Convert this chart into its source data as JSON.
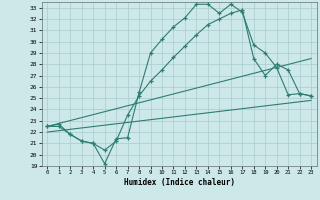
{
  "xlabel": "Humidex (Indice chaleur)",
  "bg_color": "#cce8e8",
  "grid_color": "#aacccc",
  "line_color": "#2e7d6e",
  "xlim": [
    -0.5,
    23.5
  ],
  "ylim": [
    19,
    33.5
  ],
  "xticks": [
    0,
    1,
    2,
    3,
    4,
    5,
    6,
    7,
    8,
    9,
    10,
    11,
    12,
    13,
    14,
    15,
    16,
    17,
    18,
    19,
    20,
    21,
    22,
    23
  ],
  "yticks": [
    19,
    20,
    21,
    22,
    23,
    24,
    25,
    26,
    27,
    28,
    29,
    30,
    31,
    32,
    33
  ],
  "line1_x": [
    0,
    1,
    2,
    3,
    4,
    5,
    6,
    7,
    8,
    9,
    10,
    11,
    12,
    13,
    14,
    15,
    16,
    17,
    18,
    19,
    20,
    21,
    22,
    23
  ],
  "line1_y": [
    22.5,
    22.5,
    21.8,
    21.2,
    21.0,
    19.2,
    21.4,
    21.5,
    25.5,
    29.0,
    30.2,
    31.3,
    32.1,
    33.3,
    33.3,
    32.5,
    33.3,
    32.6,
    29.7,
    29.0,
    27.7,
    25.3,
    25.4,
    25.2
  ],
  "line2_x": [
    0,
    1,
    2,
    3,
    4,
    5,
    6,
    7,
    8,
    9,
    10,
    11,
    12,
    13,
    14,
    15,
    16,
    17,
    18,
    19,
    20,
    21,
    22,
    23
  ],
  "line2_y": [
    22.5,
    22.7,
    21.8,
    21.2,
    21.0,
    20.4,
    21.2,
    23.5,
    25.2,
    26.5,
    27.5,
    28.6,
    29.6,
    30.6,
    31.5,
    32.0,
    32.5,
    32.8,
    28.5,
    27.0,
    28.0,
    27.5,
    25.4,
    25.2
  ],
  "line3_x": [
    0,
    23
  ],
  "line3_y": [
    22.5,
    28.5
  ],
  "line4_x": [
    0,
    23
  ],
  "line4_y": [
    22.0,
    24.8
  ]
}
